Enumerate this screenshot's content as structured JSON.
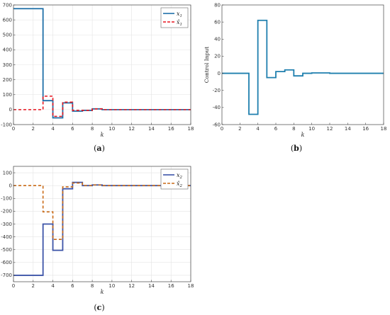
{
  "chart_data": [
    {
      "id": "a",
      "type": "line",
      "step": true,
      "caption": "(a)",
      "xlabel": "k",
      "ylabel": "",
      "xlim": [
        0,
        18
      ],
      "ylim": [
        -100,
        700
      ],
      "xticks": [
        0,
        2,
        4,
        6,
        8,
        10,
        12,
        14,
        16,
        18
      ],
      "yticks": [
        -100,
        0,
        100,
        200,
        300,
        400,
        500,
        600,
        700
      ],
      "grid": true,
      "legend": "top-right",
      "series": [
        {
          "name": "x1",
          "sub": "1",
          "hat": false,
          "color": "#1f6fa8",
          "dash": false,
          "x": [
            0,
            3,
            4,
            5,
            6,
            7,
            8,
            9,
            10,
            12,
            18
          ],
          "y": [
            675,
            60,
            -55,
            45,
            -10,
            -5,
            5,
            0,
            0,
            0,
            0
          ]
        },
        {
          "name": "x̂1",
          "sub": "1",
          "hat": true,
          "color": "#e8141e",
          "dash": true,
          "x": [
            0,
            3,
            4,
            5,
            6,
            7,
            8,
            9,
            10,
            12,
            18
          ],
          "y": [
            0,
            90,
            -45,
            50,
            -5,
            -5,
            5,
            0,
            0,
            0,
            0
          ]
        }
      ]
    },
    {
      "id": "b",
      "type": "line",
      "step": true,
      "caption": "(b)",
      "xlabel": "k",
      "ylabel": "Control Input",
      "xlim": [
        0,
        18
      ],
      "ylim": [
        -60,
        80
      ],
      "xticks": [
        0,
        2,
        4,
        6,
        8,
        10,
        12,
        14,
        16,
        18
      ],
      "yticks": [
        -60,
        -40,
        -20,
        0,
        20,
        40,
        60,
        80
      ],
      "grid": false,
      "legend": "",
      "series": [
        {
          "name": "",
          "sub": "",
          "hat": false,
          "color": "#1f7fae",
          "dash": false,
          "x": [
            0,
            3,
            4,
            5,
            6,
            7,
            8,
            9,
            10,
            12,
            18
          ],
          "y": [
            0,
            -48,
            62,
            -5,
            2,
            4,
            -3,
            0,
            0.5,
            0,
            0
          ]
        }
      ]
    },
    {
      "id": "c",
      "type": "line",
      "step": true,
      "caption": "(c)",
      "xlabel": "k",
      "ylabel": "",
      "xlim": [
        0,
        18
      ],
      "ylim": [
        -750,
        150
      ],
      "xticks": [
        0,
        2,
        4,
        6,
        8,
        10,
        12,
        14,
        16,
        18
      ],
      "yticks": [
        -700,
        -600,
        -500,
        -400,
        -300,
        -200,
        -100,
        0,
        100
      ],
      "grid": true,
      "legend": "top-right",
      "series": [
        {
          "name": "x2",
          "sub": "2",
          "hat": false,
          "color": "#3d54a8",
          "dash": false,
          "x": [
            0,
            3,
            4,
            5,
            6,
            7,
            8,
            9,
            10,
            12,
            18
          ],
          "y": [
            -700,
            -300,
            -505,
            -25,
            25,
            0,
            5,
            0,
            0,
            0,
            0
          ]
        },
        {
          "name": "x̂2",
          "sub": "2",
          "hat": true,
          "color": "#c96a16",
          "dash": true,
          "x": [
            0,
            3,
            4,
            5,
            6,
            7,
            8,
            9,
            10,
            12,
            18
          ],
          "y": [
            0,
            -205,
            -420,
            -10,
            20,
            0,
            5,
            0,
            0,
            0,
            0
          ]
        }
      ]
    }
  ]
}
